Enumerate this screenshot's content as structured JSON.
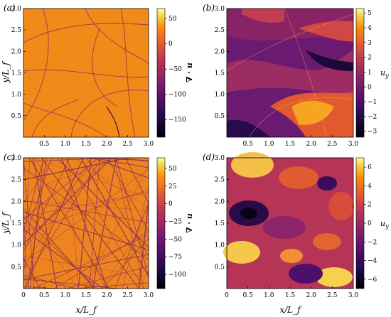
{
  "chart_data": [
    {
      "type": "heatmap",
      "panel_label": "(a)",
      "field": "divergence",
      "xlabel": "",
      "ylabel": "y/L_f",
      "xlim": [
        0,
        3
      ],
      "ylim": [
        0,
        3
      ],
      "x_ticks": [
        "0.5",
        "1.0",
        "1.5",
        "2.0",
        "2.5",
        "3.0"
      ],
      "y_ticks": [
        "0.5",
        "1.0",
        "1.5",
        "2.0",
        "2.5",
        "3.0"
      ],
      "colorbar": {
        "label_pre": "∇ · ",
        "label_var": "u",
        "ticks": [
          "50",
          "0",
          "−50",
          "−100",
          "−150"
        ],
        "range": [
          -185,
          70
        ]
      }
    },
    {
      "type": "heatmap",
      "panel_label": "(b)",
      "field": "u_y",
      "xlabel": "",
      "ylabel": "",
      "xlim": [
        0,
        3
      ],
      "ylim": [
        0,
        3
      ],
      "x_ticks": [
        "0.5",
        "1.0",
        "1.5",
        "2.0",
        "2.5",
        "3.0"
      ],
      "y_ticks": [
        "0.5",
        "1.0",
        "1.5",
        "2.0",
        "2.5",
        "3.0"
      ],
      "colorbar": {
        "label_main": "u",
        "label_sub": "y",
        "ticks": [
          "5",
          "4",
          "3",
          "2",
          "1",
          "0",
          "−1",
          "−2",
          "−3"
        ],
        "range": [
          -3.4,
          5.3
        ]
      }
    },
    {
      "type": "heatmap",
      "panel_label": "(c)",
      "field": "divergence",
      "xlabel": "x/L_f",
      "ylabel": "y/L_f",
      "xlim": [
        0,
        3
      ],
      "ylim": [
        0,
        3
      ],
      "x_ticks": [
        "0",
        "0.5",
        "1.0",
        "1.5",
        "2.0",
        "2.5",
        "3.0"
      ],
      "y_ticks": [
        "0.5",
        "1.0",
        "1.5",
        "2.0",
        "2.5",
        "3.0"
      ],
      "colorbar": {
        "label_pre": "∇ · ",
        "label_var": "u",
        "ticks": [
          "50",
          "25",
          "0",
          "−25",
          "−50",
          "−75",
          "−100"
        ],
        "range": [
          -120,
          65
        ]
      }
    },
    {
      "type": "heatmap",
      "panel_label": "(d)",
      "field": "u_y",
      "xlabel": "x/L_f",
      "ylabel": "",
      "xlim": [
        0,
        3
      ],
      "ylim": [
        0,
        3
      ],
      "x_ticks": [
        "0",
        "0.5",
        "1.0",
        "1.5",
        "2.0",
        "2.5",
        "3.0"
      ],
      "y_ticks": [
        "0.5",
        "1.0",
        "1.5",
        "2.0",
        "2.5",
        "3.0"
      ],
      "colorbar": {
        "label_main": "u",
        "label_sub": "y",
        "ticks": [
          "6",
          "4",
          "2",
          "0",
          "−2",
          "−4",
          "−6"
        ],
        "range": [
          -7,
          7
        ]
      }
    }
  ]
}
